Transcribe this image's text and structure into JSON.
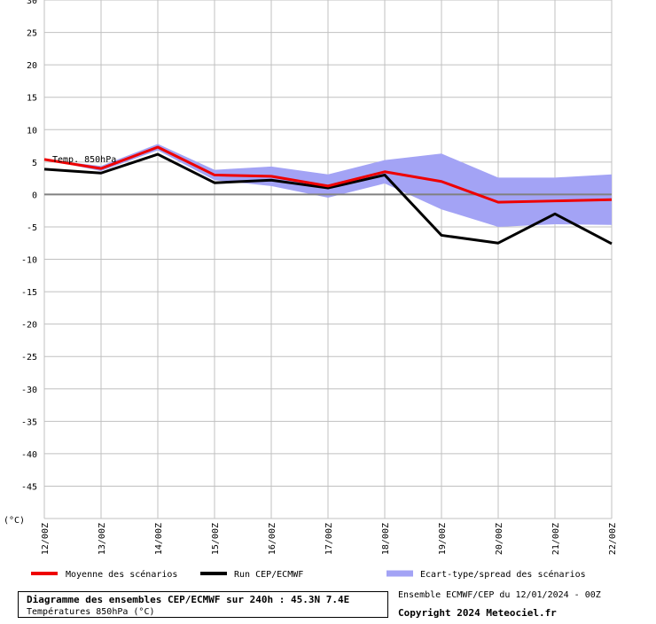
{
  "chart_data": {
    "type": "line",
    "title": "Diagramme des ensembles CEP/ECMWF sur 240h : 45.3N 7.4E",
    "subtitle": "Températures 850hPa (°C)",
    "series_label": "Temp. 850hPa",
    "ylabel": "(°C)",
    "xlabel": "",
    "ylim": [
      -50,
      30
    ],
    "yticks": [
      30,
      25,
      20,
      15,
      10,
      5,
      0,
      -5,
      -10,
      -15,
      -20,
      -25,
      -30,
      -35,
      -40,
      -45
    ],
    "ytick_labels": [
      "30",
      "25",
      "20",
      "15",
      "10",
      "5",
      "0",
      "-5",
      "-10",
      "-15",
      "-20",
      "-25",
      "-30",
      "-35",
      "-40",
      "-45"
    ],
    "grid": true,
    "categories": [
      "12/00Z",
      "13/00Z",
      "14/00Z",
      "15/00Z",
      "16/00Z",
      "17/00Z",
      "18/00Z",
      "19/00Z",
      "20/00Z",
      "21/00Z",
      "22/00Z"
    ],
    "series": [
      {
        "name": "Moyenne des scénarios",
        "color": "#ee0000",
        "values": [
          5.4,
          4.0,
          7.3,
          3.0,
          2.8,
          1.3,
          3.5,
          2.0,
          -1.2,
          -1.0,
          -0.8
        ]
      },
      {
        "name": "Run CEP/ECMWF",
        "color": "#000000",
        "values": [
          3.9,
          3.3,
          6.2,
          1.8,
          2.2,
          1.0,
          3.0,
          -6.3,
          -7.5,
          -3.0,
          -7.6
        ]
      }
    ],
    "band": {
      "name": "Ecart-type/spread des scénarios",
      "color": "#a3a3f5",
      "upper": [
        5.4,
        4.4,
        7.8,
        3.8,
        4.3,
        3.1,
        5.3,
        6.3,
        2.6,
        2.6,
        3.1
      ],
      "lower": [
        5.4,
        3.6,
        6.8,
        2.2,
        1.3,
        -0.5,
        1.7,
        -2.3,
        -5.0,
        -4.6,
        -4.7
      ]
    },
    "legend_position": "bottom"
  },
  "footer": {
    "run_info": "Ensemble ECMWF/CEP du 12/01/2024 - 00Z",
    "copyright": "Copyright 2024 Meteociel.fr"
  }
}
